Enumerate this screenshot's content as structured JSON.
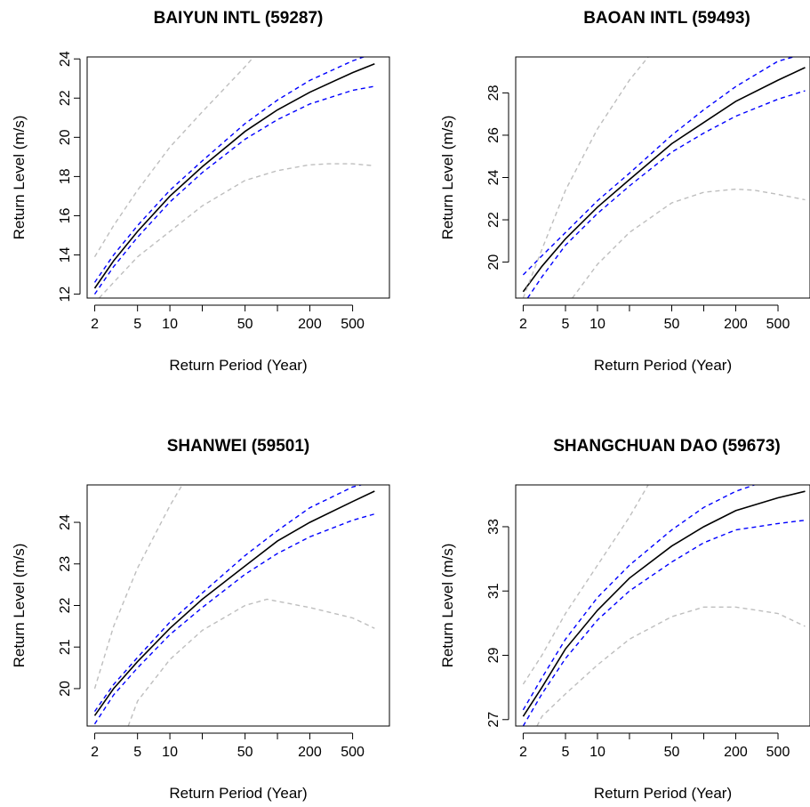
{
  "chart_data": [
    {
      "type": "line",
      "title": "BAIYUN INTL (59287)",
      "xlabel": "Return Period (Year)",
      "ylabel": "Return Level (m/s)",
      "x_scale": "log",
      "x_ticks": [
        2,
        5,
        10,
        50,
        200,
        500
      ],
      "y_ticks": [
        12,
        14,
        16,
        18,
        20,
        22,
        24
      ],
      "xlim": [
        1.7,
        1100
      ],
      "ylim": [
        11.8,
        24.1
      ],
      "grid": false,
      "series": [
        {
          "style": "solid",
          "color": "#000000",
          "x": [
            2,
            3,
            5,
            10,
            20,
            50,
            100,
            200,
            500,
            800
          ],
          "y": [
            12.3,
            13.7,
            15.2,
            17.0,
            18.5,
            20.3,
            21.4,
            22.3,
            23.3,
            23.75
          ]
        },
        {
          "style": "dashed",
          "color": "#0000ff",
          "x": [
            2,
            3,
            5,
            10,
            20,
            50,
            100,
            200,
            500,
            800
          ],
          "y": [
            12.6,
            14.0,
            15.5,
            17.3,
            18.8,
            20.7,
            21.9,
            22.9,
            23.9,
            24.3
          ]
        },
        {
          "style": "dashed",
          "color": "#0000ff",
          "x": [
            2,
            3,
            5,
            10,
            20,
            50,
            100,
            200,
            500,
            800
          ],
          "y": [
            12.0,
            13.4,
            14.9,
            16.7,
            18.2,
            19.9,
            20.9,
            21.7,
            22.4,
            22.6
          ]
        },
        {
          "style": "dashed",
          "color": "#bebebe",
          "x": [
            2,
            3,
            5,
            10,
            20,
            50,
            60
          ],
          "y": [
            13.9,
            15.5,
            17.3,
            19.5,
            21.3,
            23.6,
            24.1
          ]
        },
        {
          "style": "dashed",
          "color": "#bebebe",
          "x": [
            2.2,
            3,
            5,
            10,
            20,
            50,
            100,
            200,
            300,
            500,
            800
          ],
          "y": [
            11.8,
            12.6,
            13.9,
            15.2,
            16.5,
            17.8,
            18.3,
            18.6,
            18.65,
            18.65,
            18.55
          ]
        }
      ]
    },
    {
      "type": "line",
      "title": "BAOAN INTL (59493)",
      "xlabel": "Return Period (Year)",
      "ylabel": "Return Level (m/s)",
      "x_scale": "log",
      "x_ticks": [
        2,
        5,
        10,
        50,
        200,
        500
      ],
      "y_ticks": [
        20,
        22,
        24,
        26,
        28
      ],
      "xlim": [
        1.7,
        1000
      ],
      "ylim": [
        18.3,
        29.7
      ],
      "grid": false,
      "series": [
        {
          "style": "solid",
          "color": "#000000",
          "x": [
            2,
            3,
            5,
            10,
            20,
            50,
            100,
            200,
            500,
            900
          ],
          "y": [
            18.6,
            19.8,
            21.1,
            22.6,
            23.9,
            25.6,
            26.6,
            27.6,
            28.6,
            29.2
          ]
        },
        {
          "style": "dashed",
          "color": "#0000ff",
          "x": [
            2,
            3,
            5,
            10,
            20,
            50,
            100,
            200,
            500,
            700
          ],
          "y": [
            19.4,
            20.3,
            21.4,
            22.9,
            24.2,
            26.0,
            27.2,
            28.3,
            29.5,
            29.7
          ]
        },
        {
          "style": "dashed",
          "color": "#0000ff",
          "x": [
            2.2,
            3,
            5,
            10,
            20,
            50,
            100,
            200,
            500,
            900
          ],
          "y": [
            18.3,
            19.3,
            20.8,
            22.3,
            23.6,
            25.2,
            26.1,
            26.9,
            27.7,
            28.1
          ]
        },
        {
          "style": "dashed",
          "color": "#bebebe",
          "x": [
            2,
            3,
            5,
            10,
            20,
            30
          ],
          "y": [
            18.3,
            20.6,
            23.4,
            26.3,
            28.6,
            29.7
          ]
        },
        {
          "style": "dashed",
          "color": "#bebebe",
          "x": [
            5.8,
            10,
            20,
            50,
            100,
            200,
            300,
            500,
            900
          ],
          "y": [
            18.3,
            19.9,
            21.4,
            22.8,
            23.3,
            23.45,
            23.4,
            23.2,
            22.95
          ]
        }
      ]
    },
    {
      "type": "line",
      "title": "SHANWEI (59501)",
      "xlabel": "Return Period (Year)",
      "ylabel": "Return Level (m/s)",
      "x_scale": "log",
      "x_ticks": [
        2,
        5,
        10,
        50,
        200,
        500
      ],
      "y_ticks": [
        20,
        21,
        22,
        23,
        24
      ],
      "xlim": [
        1.7,
        1100
      ],
      "ylim": [
        19.1,
        24.9
      ],
      "grid": false,
      "series": [
        {
          "style": "solid",
          "color": "#000000",
          "x": [
            2,
            3,
            5,
            10,
            20,
            50,
            100,
            200,
            500,
            800
          ],
          "y": [
            19.35,
            20.0,
            20.65,
            21.45,
            22.15,
            22.95,
            23.55,
            24.0,
            24.5,
            24.75
          ]
        },
        {
          "style": "dashed",
          "color": "#0000ff",
          "x": [
            2,
            3,
            5,
            10,
            20,
            50,
            100,
            200,
            500,
            600
          ],
          "y": [
            19.45,
            20.1,
            20.75,
            21.6,
            22.3,
            23.2,
            23.8,
            24.35,
            24.85,
            24.9
          ]
        },
        {
          "style": "dashed",
          "color": "#0000ff",
          "x": [
            2,
            3,
            5,
            10,
            20,
            50,
            100,
            200,
            500,
            800
          ],
          "y": [
            19.15,
            19.85,
            20.5,
            21.3,
            21.95,
            22.75,
            23.25,
            23.65,
            24.05,
            24.2
          ]
        },
        {
          "style": "dashed",
          "color": "#bebebe",
          "x": [
            2,
            3,
            5,
            10,
            13
          ],
          "y": [
            20.0,
            21.5,
            22.9,
            24.4,
            24.9
          ]
        },
        {
          "style": "dashed",
          "color": "#bebebe",
          "x": [
            4.1,
            5,
            10,
            20,
            50,
            80,
            100,
            200,
            500,
            800
          ],
          "y": [
            19.1,
            19.7,
            20.7,
            21.4,
            22.0,
            22.15,
            22.1,
            21.95,
            21.7,
            21.45
          ]
        }
      ]
    },
    {
      "type": "line",
      "title": "SHANGCHUAN DAO (59673)",
      "xlabel": "Return Period (Year)",
      "ylabel": "Return Level (m/s)",
      "x_scale": "log",
      "x_ticks": [
        2,
        5,
        10,
        50,
        200,
        500
      ],
      "y_ticks": [
        27,
        29,
        31,
        33
      ],
      "xlim": [
        1.7,
        1000
      ],
      "ylim": [
        26.8,
        34.3
      ],
      "grid": false,
      "series": [
        {
          "style": "solid",
          "color": "#000000",
          "x": [
            2,
            3,
            5,
            10,
            20,
            50,
            100,
            200,
            500,
            900
          ],
          "y": [
            27.1,
            28.0,
            29.2,
            30.4,
            31.4,
            32.4,
            33.0,
            33.5,
            33.9,
            34.1
          ]
        },
        {
          "style": "dashed",
          "color": "#0000ff",
          "x": [
            2,
            3,
            5,
            10,
            20,
            50,
            100,
            200,
            300
          ],
          "y": [
            27.3,
            28.3,
            29.5,
            30.8,
            31.8,
            32.9,
            33.6,
            34.1,
            34.3
          ]
        },
        {
          "style": "dashed",
          "color": "#0000ff",
          "x": [
            2,
            3,
            5,
            10,
            20,
            50,
            100,
            200,
            500,
            900
          ],
          "y": [
            26.8,
            27.8,
            28.9,
            30.1,
            31.0,
            31.9,
            32.5,
            32.9,
            33.1,
            33.2
          ]
        },
        {
          "style": "dashed",
          "color": "#bebebe",
          "x": [
            2,
            3,
            5,
            10,
            20,
            30
          ],
          "y": [
            28.1,
            29.0,
            30.3,
            31.8,
            33.3,
            34.3
          ]
        },
        {
          "style": "dashed",
          "color": "#bebebe",
          "x": [
            2.7,
            3,
            5,
            10,
            20,
            50,
            100,
            200,
            500,
            900
          ],
          "y": [
            26.8,
            27.1,
            27.8,
            28.7,
            29.5,
            30.2,
            30.5,
            30.5,
            30.3,
            29.9
          ]
        }
      ]
    }
  ]
}
